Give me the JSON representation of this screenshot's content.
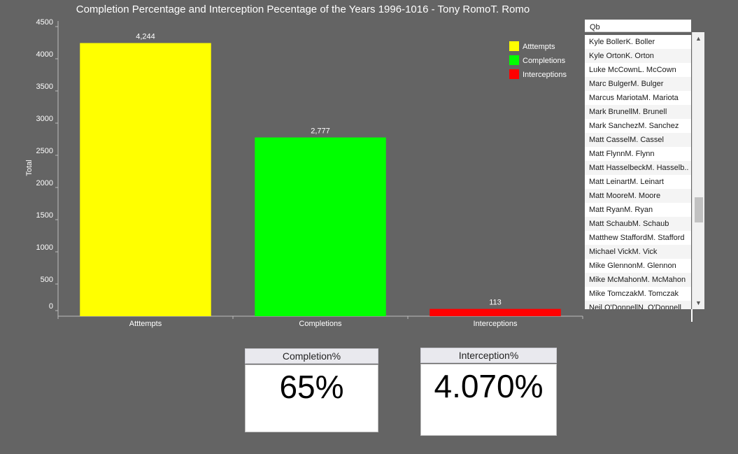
{
  "chart_data": {
    "type": "bar",
    "title": "Completion Percentage and Interception Pecentage of the Years 1996-1016 - Tony RomoT. Romo",
    "categories": [
      "Atttempts",
      "Completions",
      "Interceptions"
    ],
    "values": [
      4244,
      2777,
      113
    ],
    "value_labels": [
      "4,244",
      "2,777",
      "113"
    ],
    "colors": [
      "#ffff00",
      "#00ff00",
      "#ff0000"
    ],
    "xlabel": "",
    "ylabel": "Total",
    "ylim": [
      0,
      4500
    ],
    "yticks": [
      0,
      500,
      1000,
      1500,
      2000,
      2500,
      3000,
      3500,
      4000,
      4500
    ],
    "grid": false,
    "legend": {
      "placement": "top-right",
      "entries": [
        "Atttempts",
        "Completions",
        "Interceptions"
      ]
    }
  },
  "slicer": {
    "header": "Qb",
    "items": [
      "Kyle BollerK. Boller",
      "Kyle OrtonK. Orton",
      "Luke McCownL. McCown",
      "Marc BulgerM. Bulger",
      "Marcus MariotaM. Mariota",
      "Mark BrunellM. Brunell",
      "Mark SanchezM. Sanchez",
      "Matt CasselM. Cassel",
      "Matt FlynnM. Flynn",
      "Matt HasselbeckM. Hasselb..",
      "Matt LeinartM. Leinart",
      "Matt MooreM. Moore",
      "Matt RyanM. Ryan",
      "Matt SchaubM. Schaub",
      "Matthew StaffordM. Stafford",
      "Michael VickM. Vick",
      "Mike GlennonM. Glennon",
      "Mike McMahonM. McMahon",
      "Mike TomczakM. Tomczak",
      "Neil O'DonnellN. O'Donnell"
    ],
    "scroll_up_icon": "chevron-up-icon",
    "scroll_down_icon": "chevron-down-icon"
  },
  "cards": {
    "completion": {
      "label": "Completion%",
      "value": "65%"
    },
    "interception": {
      "label": "Interception%",
      "value": "4.070%"
    }
  }
}
